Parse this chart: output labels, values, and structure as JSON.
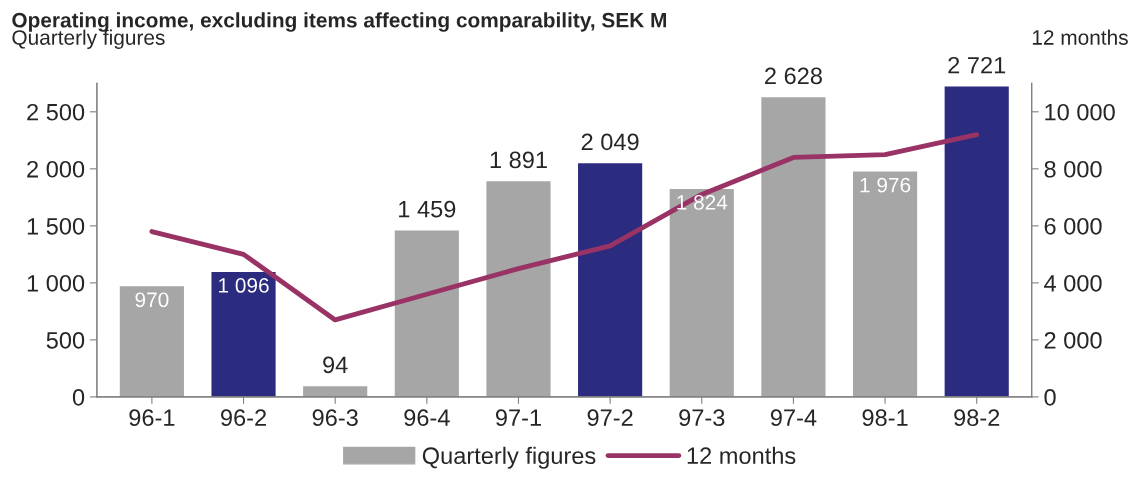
{
  "chart_data": {
    "type": "bar",
    "title": "Operating income, excluding items affecting comparability, SEK M",
    "ylabel": "Quarterly figures",
    "y2label": "12 months",
    "categories": [
      "96-1",
      "96-2",
      "96-3",
      "96-4",
      "97-1",
      "97-2",
      "97-3",
      "97-4",
      "98-1",
      "98-2"
    ],
    "series": [
      {
        "name": "Quarterly figures",
        "type": "bar",
        "colors": [
          "#a6a6a6",
          "#2b2b7f",
          "#a6a6a6",
          "#a6a6a6",
          "#a6a6a6",
          "#2b2b7f",
          "#a6a6a6",
          "#a6a6a6",
          "#a6a6a6",
          "#2b2b7f"
        ],
        "values": [
          970,
          1096,
          94,
          1459,
          1891,
          2049,
          1824,
          2628,
          1976,
          2721
        ],
        "value_labels": [
          "970",
          "1 096",
          "94",
          "1 459",
          "1 891",
          "2 049",
          "1 824",
          "2 628",
          "1 976",
          "2 721"
        ]
      },
      {
        "name": "12 months",
        "type": "line",
        "axis": "y2",
        "color": "#993366",
        "values": [
          5800,
          5000,
          2700,
          3600,
          4500,
          5300,
          7100,
          8400,
          8500,
          9200
        ]
      }
    ],
    "ylim": [
      0,
      2750
    ],
    "yticks": [
      0,
      500,
      {
        "value": 1000,
        "label": "1 000"
      },
      {
        "value": 1500,
        "label": "1 500"
      },
      {
        "value": 2000,
        "label": "2 000"
      },
      {
        "value": 2500,
        "label": "2 500"
      }
    ],
    "y2lim": [
      0,
      11000
    ],
    "y2ticks": [
      0,
      {
        "value": 2000,
        "label": "2 000"
      },
      {
        "value": 4000,
        "label": "4 000"
      },
      {
        "value": 6000,
        "label": "6 000"
      },
      {
        "value": 8000,
        "label": "8 000"
      },
      {
        "value": 10000,
        "label": "10 000"
      }
    ],
    "grid": false,
    "legend": "bottom",
    "marker": "none",
    "line_style": "solid"
  }
}
